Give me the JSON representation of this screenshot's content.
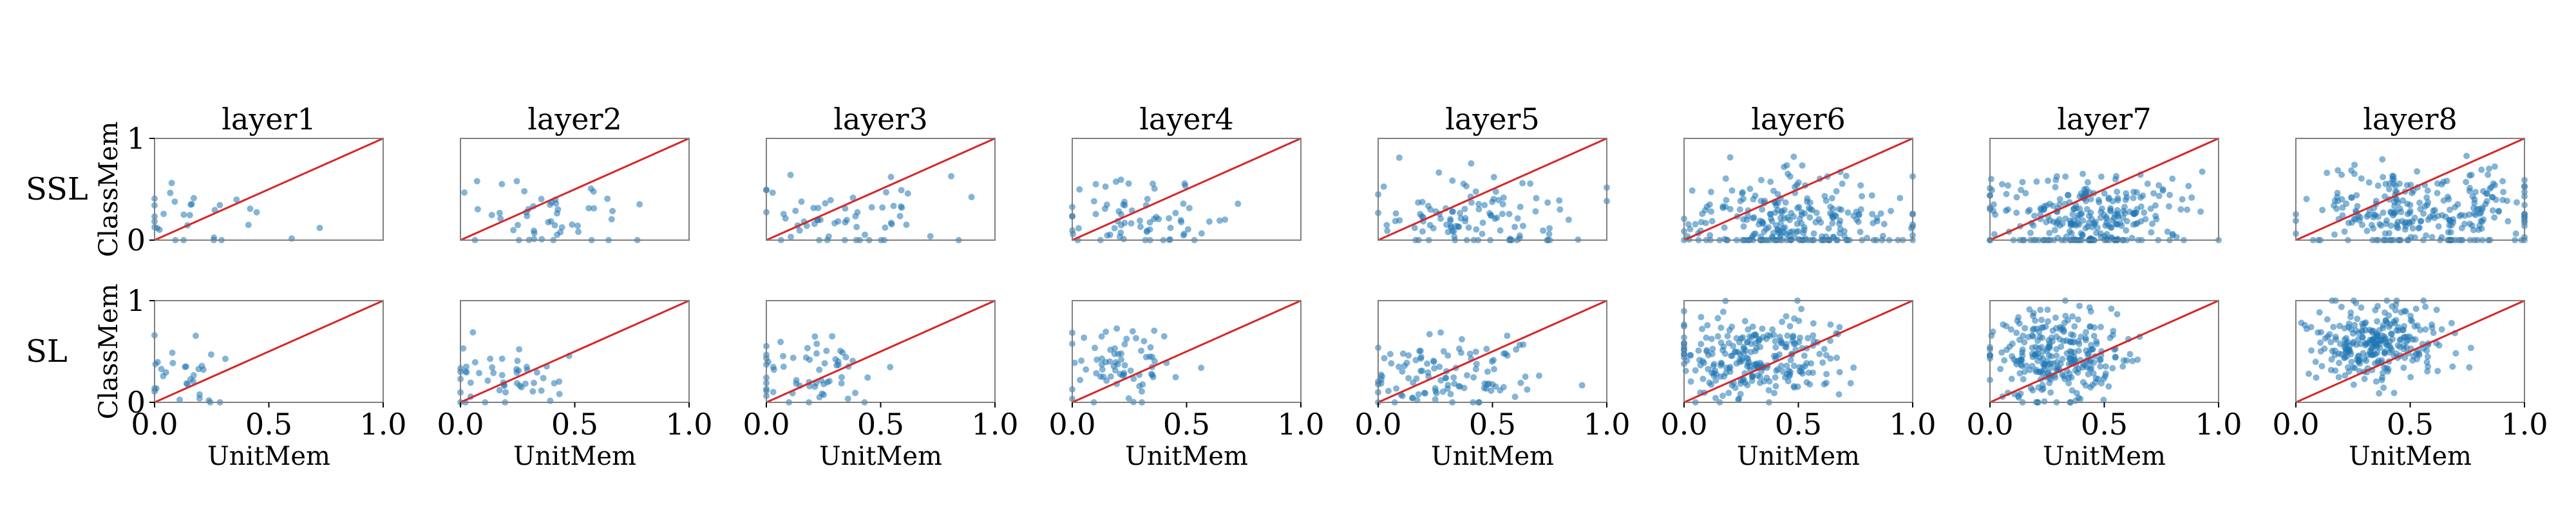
{
  "chart_data": {
    "type": "scatter",
    "row_labels": [
      "SSL",
      "SL"
    ],
    "titles": [
      "layer1",
      "layer2",
      "layer3",
      "layer4",
      "layer5",
      "layer6",
      "layer7",
      "layer8"
    ],
    "xlabel": "UnitMem",
    "ylabel": "ClassMem",
    "x_ticks": [
      "0.0",
      "0.5",
      "1.0"
    ],
    "y_ticks": [
      "0",
      "1"
    ],
    "xlim": [
      0,
      1
    ],
    "ylim": [
      0,
      1
    ],
    "reference_line": {
      "from": [
        0,
        0
      ],
      "to": [
        1,
        1
      ]
    },
    "grid": false,
    "colors": {
      "points": "#1f77b4",
      "reference_line": "#d62728",
      "frame": "#808080"
    },
    "panels": [
      {
        "row": "SSL",
        "title": "layer1",
        "n": 30,
        "x_mean": 0.2,
        "x_sd": 0.2,
        "y_mean": 0.17,
        "y_sd": 0.2
      },
      {
        "row": "SSL",
        "title": "layer2",
        "n": 50,
        "x_mean": 0.35,
        "x_sd": 0.22,
        "y_mean": 0.17,
        "y_sd": 0.18
      },
      {
        "row": "SSL",
        "title": "layer3",
        "n": 60,
        "x_mean": 0.35,
        "x_sd": 0.22,
        "y_mean": 0.25,
        "y_sd": 0.2
      },
      {
        "row": "SSL",
        "title": "layer4",
        "n": 70,
        "x_mean": 0.3,
        "x_sd": 0.2,
        "y_mean": 0.2,
        "y_sd": 0.18
      },
      {
        "row": "SSL",
        "title": "layer5",
        "n": 110,
        "x_mean": 0.45,
        "x_sd": 0.25,
        "y_mean": 0.2,
        "y_sd": 0.2
      },
      {
        "row": "SSL",
        "title": "layer6",
        "n": 260,
        "x_mean": 0.45,
        "x_sd": 0.22,
        "y_mean": 0.18,
        "y_sd": 0.22
      },
      {
        "row": "SSL",
        "title": "layer7",
        "n": 280,
        "x_mean": 0.4,
        "x_sd": 0.22,
        "y_mean": 0.22,
        "y_sd": 0.22
      },
      {
        "row": "SSL",
        "title": "layer8",
        "n": 280,
        "x_mean": 0.55,
        "x_sd": 0.25,
        "y_mean": 0.25,
        "y_sd": 0.22
      },
      {
        "row": "SL",
        "title": "layer1",
        "n": 30,
        "x_mean": 0.15,
        "x_sd": 0.15,
        "y_mean": 0.2,
        "y_sd": 0.18
      },
      {
        "row": "SL",
        "title": "layer2",
        "n": 50,
        "x_mean": 0.2,
        "x_sd": 0.15,
        "y_mean": 0.25,
        "y_sd": 0.18
      },
      {
        "row": "SL",
        "title": "layer3",
        "n": 60,
        "x_mean": 0.2,
        "x_sd": 0.15,
        "y_mean": 0.3,
        "y_sd": 0.2
      },
      {
        "row": "SL",
        "title": "layer4",
        "n": 70,
        "x_mean": 0.2,
        "x_sd": 0.12,
        "y_mean": 0.4,
        "y_sd": 0.2
      },
      {
        "row": "SL",
        "title": "layer5",
        "n": 110,
        "x_mean": 0.3,
        "x_sd": 0.2,
        "y_mean": 0.3,
        "y_sd": 0.18
      },
      {
        "row": "SL",
        "title": "layer6",
        "n": 260,
        "x_mean": 0.3,
        "x_sd": 0.18,
        "y_mean": 0.45,
        "y_sd": 0.2
      },
      {
        "row": "SL",
        "title": "layer7",
        "n": 280,
        "x_mean": 0.3,
        "x_sd": 0.15,
        "y_mean": 0.45,
        "y_sd": 0.22
      },
      {
        "row": "SL",
        "title": "layer8",
        "n": 280,
        "x_mean": 0.35,
        "x_sd": 0.15,
        "y_mean": 0.6,
        "y_sd": 0.18
      }
    ]
  }
}
